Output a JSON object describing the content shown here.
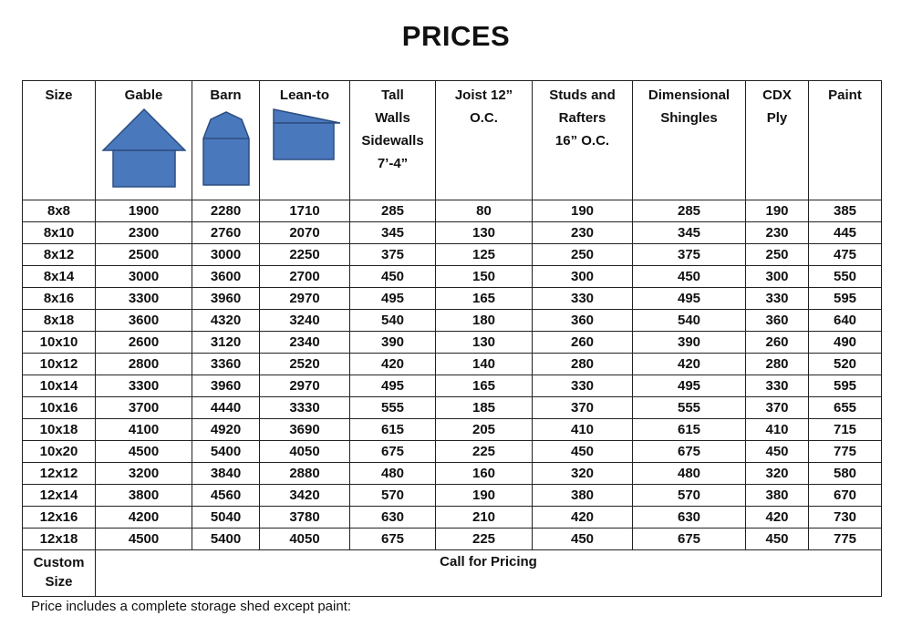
{
  "title": "PRICES",
  "headers": {
    "size": "Size",
    "gable": "Gable",
    "barn": "Barn",
    "leanto": "Lean-to",
    "tall_walls": [
      "Tall",
      "Walls",
      "Sidewalls",
      "7’-4”"
    ],
    "joist": [
      "Joist 12”",
      "O.C."
    ],
    "studs": [
      "Studs and",
      "Rafters",
      "16” O.C."
    ],
    "shingles": [
      "Dimensional",
      "Shingles"
    ],
    "cdx": [
      "CDX",
      "Ply"
    ],
    "paint": "Paint"
  },
  "shape_icons": [
    "gable-shed-icon",
    "barn-shed-icon",
    "lean-to-shed-icon"
  ],
  "shape_color": "#4a78bd",
  "rows": [
    [
      "8x8",
      "1900",
      "2280",
      "1710",
      "285",
      "80",
      "190",
      "285",
      "190",
      "385"
    ],
    [
      "8x10",
      "2300",
      "2760",
      "2070",
      "345",
      "130",
      "230",
      "345",
      "230",
      "445"
    ],
    [
      "8x12",
      "2500",
      "3000",
      "2250",
      "375",
      "125",
      "250",
      "375",
      "250",
      "475"
    ],
    [
      "8x14",
      "3000",
      "3600",
      "2700",
      "450",
      "150",
      "300",
      "450",
      "300",
      "550"
    ],
    [
      "8x16",
      "3300",
      "3960",
      "2970",
      "495",
      "165",
      "330",
      "495",
      "330",
      "595"
    ],
    [
      "8x18",
      "3600",
      "4320",
      "3240",
      "540",
      "180",
      "360",
      "540",
      "360",
      "640"
    ],
    [
      "10x10",
      "2600",
      "3120",
      "2340",
      "390",
      "130",
      "260",
      "390",
      "260",
      "490"
    ],
    [
      "10x12",
      "2800",
      "3360",
      "2520",
      "420",
      "140",
      "280",
      "420",
      "280",
      "520"
    ],
    [
      "10x14",
      "3300",
      "3960",
      "2970",
      "495",
      "165",
      "330",
      "495",
      "330",
      "595"
    ],
    [
      "10x16",
      "3700",
      "4440",
      "3330",
      "555",
      "185",
      "370",
      "555",
      "370",
      "655"
    ],
    [
      "10x18",
      "4100",
      "4920",
      "3690",
      "615",
      "205",
      "410",
      "615",
      "410",
      "715"
    ],
    [
      "10x20",
      "4500",
      "5400",
      "4050",
      "675",
      "225",
      "450",
      "675",
      "450",
      "775"
    ],
    [
      "12x12",
      "3200",
      "3840",
      "2880",
      "480",
      "160",
      "320",
      "480",
      "320",
      "580"
    ],
    [
      "12x14",
      "3800",
      "4560",
      "3420",
      "570",
      "190",
      "380",
      "570",
      "380",
      "670"
    ],
    [
      "12x16",
      "4200",
      "5040",
      "3780",
      "630",
      "210",
      "420",
      "630",
      "420",
      "730"
    ],
    [
      "12x18",
      "4500",
      "5400",
      "4050",
      "675",
      "225",
      "450",
      "675",
      "450",
      "775"
    ]
  ],
  "custom": {
    "size_line1": "Custom",
    "size_line2": "Size",
    "text": "Call for Pricing"
  },
  "footer": "Price includes a complete storage shed except paint:"
}
